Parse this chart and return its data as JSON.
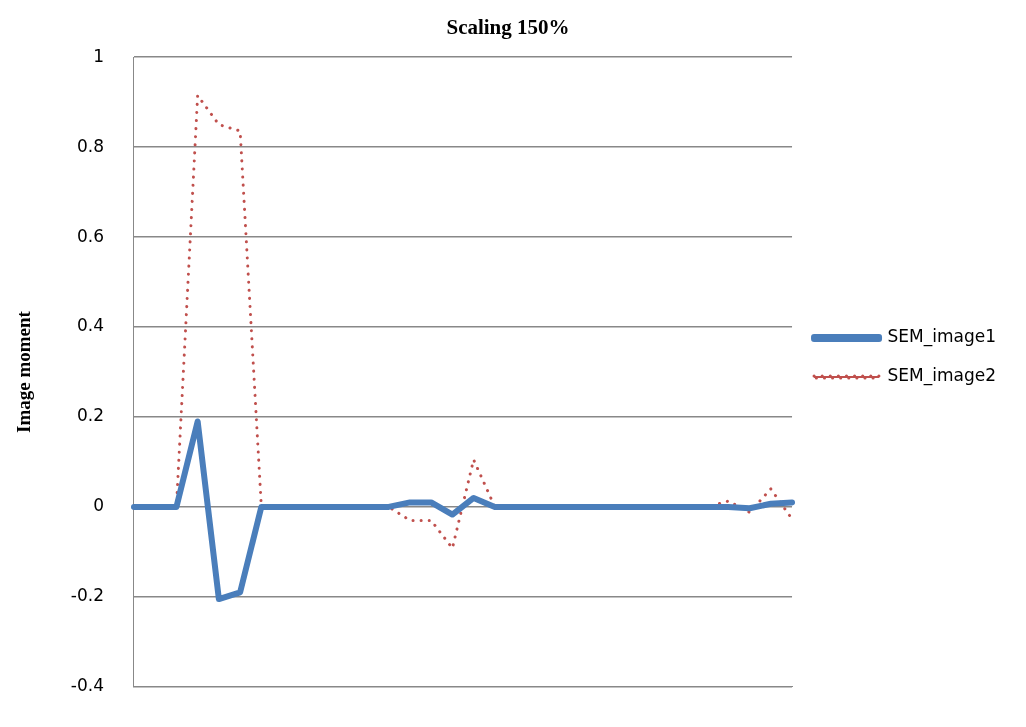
{
  "chart_data": {
    "type": "line",
    "title": "Scaling 150%",
    "ylabel": "Image moment",
    "categories": [
      null,
      null,
      null,
      null,
      null,
      null,
      null,
      null,
      null,
      null,
      null,
      null,
      null,
      null,
      null,
      null,
      null,
      null,
      null,
      null,
      null,
      null,
      null,
      null,
      null,
      null,
      null,
      null,
      null,
      null,
      null,
      null
    ],
    "series": [
      {
        "name": "SEM_image1",
        "color": "#4a7ebb",
        "line_style": "solid",
        "values": [
          0,
          0,
          0,
          0.19,
          -0.205,
          -0.19,
          0,
          0,
          0,
          0,
          0,
          0,
          0,
          0.01,
          0.01,
          -0.017,
          0.02,
          0,
          0,
          0,
          0,
          0,
          0,
          0,
          0,
          0,
          0,
          0,
          0,
          -0.003,
          0.007,
          0.01
        ]
      },
      {
        "name": "SEM_image2",
        "color": "#c0504d",
        "line_style": "dotted",
        "values": [
          0,
          0,
          0,
          0.915,
          0.85,
          0.836,
          0,
          0,
          0,
          0,
          0,
          0,
          0,
          -0.03,
          -0.03,
          -0.092,
          0.105,
          0,
          0,
          0,
          0,
          0,
          0,
          0,
          0,
          0,
          0,
          0,
          0.013,
          -0.012,
          0.04,
          -0.027
        ]
      }
    ],
    "ylim": [
      -0.4,
      1
    ],
    "yticks": [
      -0.4,
      -0.2,
      0,
      0.2,
      0.4,
      0.6,
      0.8,
      1
    ],
    "grid": "y",
    "legend": "right",
    "marker": "none"
  }
}
